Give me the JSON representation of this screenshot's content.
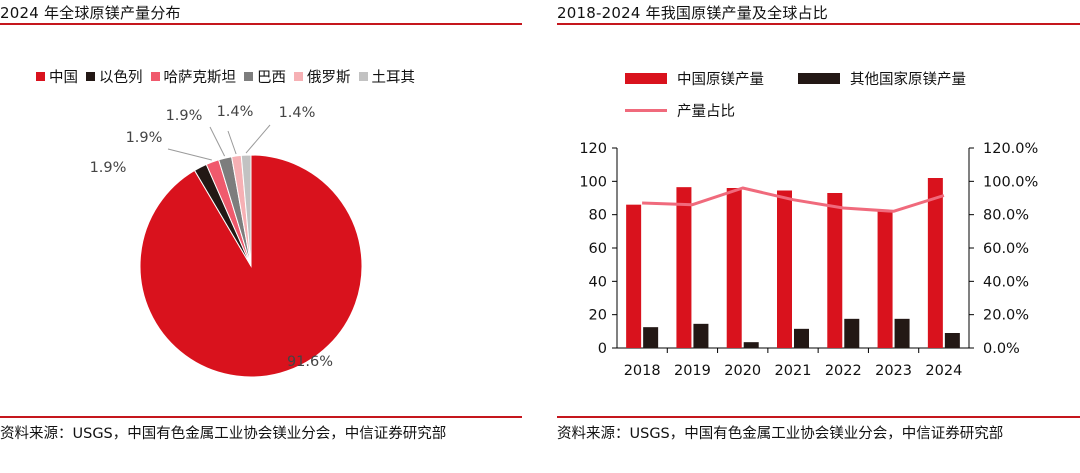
{
  "left": {
    "title": "2024 年全球原镁产量分布",
    "source": "资料来源：USGS，中国有色金属工业协会镁业分会，中信证券研究部"
  },
  "right": {
    "title": "2018-2024 年我国原镁产量及全球占比",
    "source": "资料来源：USGS，中国有色金属工业协会镁业分会，中信证券研究部"
  },
  "chart_data": [
    {
      "type": "pie",
      "title": "2024 年全球原镁产量分布",
      "slices": [
        {
          "label": "中国",
          "value": 91.6,
          "value_label": "91.6%",
          "color": "#d9121d"
        },
        {
          "label": "以色列",
          "value": 1.9,
          "value_label": "1.9%",
          "color": "#231815"
        },
        {
          "label": "哈萨克斯坦",
          "value": 1.9,
          "value_label": "1.9%",
          "color": "#f05a6d"
        },
        {
          "label": "巴西",
          "value": 1.9,
          "value_label": "1.9%",
          "color": "#7d7d7d"
        },
        {
          "label": "俄罗斯",
          "value": 1.4,
          "value_label": "1.4%",
          "color": "#f6b0b4"
        },
        {
          "label": "土耳其",
          "value": 1.4,
          "value_label": "1.4%",
          "color": "#c2c2c2"
        }
      ]
    },
    {
      "type": "bar",
      "title": "2018-2024 年我国原镁产量及全球占比",
      "categories": [
        "2018",
        "2019",
        "2020",
        "2021",
        "2022",
        "2023",
        "2024"
      ],
      "series": [
        {
          "name": "中国原镁产量",
          "type": "bar",
          "axis": "left",
          "color": "#d9121d",
          "values": [
            86,
            96.5,
            96,
            94.5,
            93,
            82,
            102
          ]
        },
        {
          "name": "其他国家原镁产量",
          "type": "bar",
          "axis": "left",
          "color": "#231815",
          "values": [
            12.5,
            14.5,
            3.5,
            11.5,
            17.5,
            17.5,
            9
          ]
        },
        {
          "name": "产量占比",
          "type": "line",
          "axis": "right",
          "color": "#f06a7c",
          "values": [
            87.0,
            86.0,
            96.0,
            89.0,
            84.0,
            82.0,
            91.5
          ]
        }
      ],
      "ylim_left": [
        0,
        120
      ],
      "yticks_left": [
        "0",
        "20",
        "40",
        "60",
        "80",
        "100",
        "120"
      ],
      "ylim_right": [
        0,
        120
      ],
      "yticks_right": [
        "0.0%",
        "20.0%",
        "40.0%",
        "60.0%",
        "80.0%",
        "100.0%",
        "120.0%"
      ]
    }
  ]
}
